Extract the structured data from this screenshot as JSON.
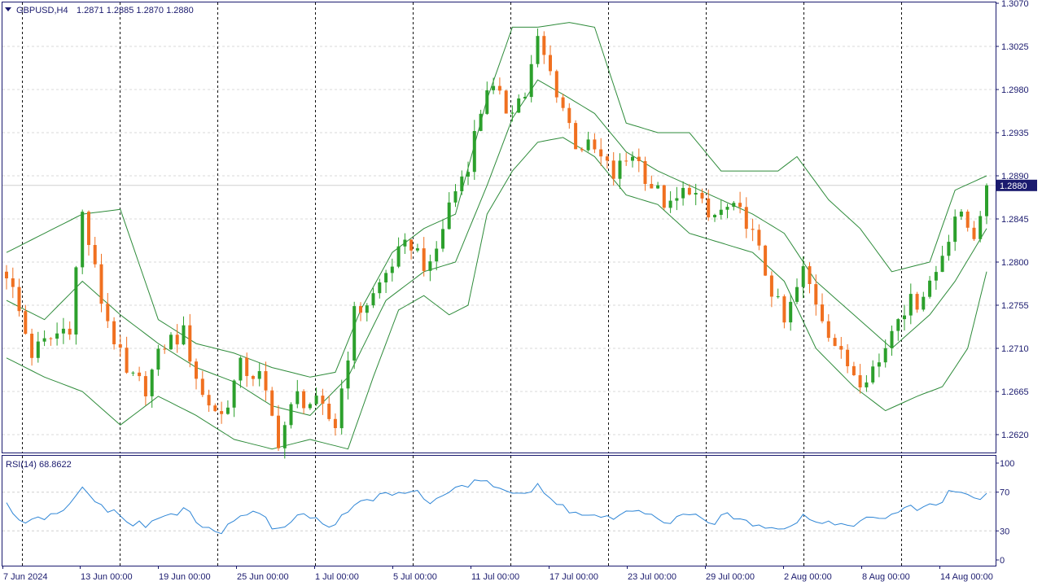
{
  "header": {
    "symbol": "GBPUSD,H4",
    "ohlc": "1.2871 1.2885 1.2870 1.2880"
  },
  "price_tag": "1.2880",
  "rsi": {
    "label": "RSI(14) 68.8622",
    "levels": [
      "100",
      "70",
      "30",
      "0"
    ]
  },
  "colors": {
    "background": "#ffffff",
    "frame": "#1a1a6e",
    "bull": "#2ca02c",
    "bear": "#f07020",
    "bands": "#2e8b3a",
    "rsi_line": "#2f86d6",
    "price_tag_bg": "#1a1a6e"
  },
  "chart_data": [
    {
      "type": "candlestick",
      "title": "GBPUSD,H4",
      "y_ticks": [
        "1.3070",
        "1.3025",
        "1.2980",
        "1.2935",
        "1.2890",
        "1.2845",
        "1.2800",
        "1.2755",
        "1.2710",
        "1.2665",
        "1.2620"
      ],
      "ylim": [
        1.26,
        1.307
      ],
      "x_ticks": [
        "7 Jun 2024",
        "13 Jun 00:00",
        "19 Jun 00:00",
        "25 Jun 00:00",
        "1 Jul 00:00",
        "5 Jul 00:00",
        "11 Jul 00:00",
        "17 Jul 00:00",
        "23 Jul 00:00",
        "29 Jul 00:00",
        "2 Aug 00:00",
        "8 Aug 00:00",
        "14 Aug 00:00"
      ],
      "close_path": [
        [
          0,
          1.279
        ],
        [
          4,
          1.2705
        ],
        [
          7,
          1.272
        ],
        [
          10,
          1.2735
        ],
        [
          12,
          1.285
        ],
        [
          15,
          1.276
        ],
        [
          19,
          1.268
        ],
        [
          22,
          1.267
        ],
        [
          25,
          1.2715
        ],
        [
          28,
          1.2725
        ],
        [
          31,
          1.266
        ],
        [
          34,
          1.264
        ],
        [
          37,
          1.269
        ],
        [
          40,
          1.268
        ],
        [
          43,
          1.2615
        ],
        [
          46,
          1.266
        ],
        [
          49,
          1.265
        ],
        [
          52,
          1.263
        ],
        [
          55,
          1.2745
        ],
        [
          58,
          1.2765
        ],
        [
          61,
          1.28
        ],
        [
          64,
          1.282
        ],
        [
          67,
          1.279
        ],
        [
          70,
          1.286
        ],
        [
          73,
          1.2905
        ],
        [
          76,
          1.2985
        ],
        [
          79,
          1.296
        ],
        [
          82,
          1.2975
        ],
        [
          84,
          1.303
        ],
        [
          87,
          1.298
        ],
        [
          90,
          1.2925
        ],
        [
          93,
          1.2915
        ],
        [
          96,
          1.289
        ],
        [
          99,
          1.2915
        ],
        [
          102,
          1.288
        ],
        [
          105,
          1.2855
        ],
        [
          108,
          1.288
        ],
        [
          111,
          1.2845
        ],
        [
          114,
          1.2855
        ],
        [
          117,
          1.2845
        ],
        [
          120,
          1.279
        ],
        [
          123,
          1.2735
        ],
        [
          126,
          1.279
        ],
        [
          129,
          1.2745
        ],
        [
          132,
          1.27
        ],
        [
          135,
          1.268
        ],
        [
          138,
          1.2695
        ],
        [
          141,
          1.275
        ],
        [
          144,
          1.276
        ],
        [
          147,
          1.279
        ],
        [
          150,
          1.285
        ],
        [
          153,
          1.283
        ],
        [
          155,
          1.288
        ]
      ],
      "bands": {
        "upper": [
          [
            0,
            1.281
          ],
          [
            6,
            1.283
          ],
          [
            12,
            1.285
          ],
          [
            18,
            1.2855
          ],
          [
            24,
            1.274
          ],
          [
            30,
            1.2715
          ],
          [
            36,
            1.2705
          ],
          [
            42,
            1.269
          ],
          [
            48,
            1.268
          ],
          [
            52,
            1.2685
          ],
          [
            56,
            1.275
          ],
          [
            61,
            1.281
          ],
          [
            66,
            1.2835
          ],
          [
            71,
            1.285
          ],
          [
            76,
            1.297
          ],
          [
            80,
            1.3045
          ],
          [
            84,
            1.3045
          ],
          [
            89,
            1.305
          ],
          [
            93,
            1.3045
          ],
          [
            98,
            1.2945
          ],
          [
            103,
            1.2935
          ],
          [
            108,
            1.2935
          ],
          [
            113,
            1.2895
          ],
          [
            118,
            1.2895
          ],
          [
            122,
            1.2895
          ],
          [
            125,
            1.291
          ],
          [
            130,
            1.2865
          ],
          [
            135,
            1.2835
          ],
          [
            140,
            1.279
          ],
          [
            146,
            1.28
          ],
          [
            150,
            1.2875
          ],
          [
            155,
            1.289
          ]
        ],
        "middle": [
          [
            0,
            1.276
          ],
          [
            6,
            1.274
          ],
          [
            12,
            1.278
          ],
          [
            18,
            1.2745
          ],
          [
            24,
            1.2715
          ],
          [
            30,
            1.269
          ],
          [
            36,
            1.2675
          ],
          [
            42,
            1.265
          ],
          [
            48,
            1.264
          ],
          [
            54,
            1.268
          ],
          [
            60,
            1.276
          ],
          [
            66,
            1.279
          ],
          [
            71,
            1.28
          ],
          [
            76,
            1.288
          ],
          [
            80,
            1.295
          ],
          [
            84,
            1.299
          ],
          [
            88,
            1.2975
          ],
          [
            93,
            1.2955
          ],
          [
            98,
            1.2915
          ],
          [
            103,
            1.2895
          ],
          [
            108,
            1.288
          ],
          [
            113,
            1.2865
          ],
          [
            118,
            1.285
          ],
          [
            123,
            1.283
          ],
          [
            128,
            1.278
          ],
          [
            134,
            1.2745
          ],
          [
            140,
            1.271
          ],
          [
            146,
            1.2745
          ],
          [
            150,
            1.278
          ],
          [
            155,
            1.2835
          ]
        ],
        "lower": [
          [
            0,
            1.27
          ],
          [
            6,
            1.268
          ],
          [
            12,
            1.2665
          ],
          [
            18,
            1.263
          ],
          [
            24,
            1.266
          ],
          [
            30,
            1.264
          ],
          [
            36,
            1.2615
          ],
          [
            42,
            1.2605
          ],
          [
            48,
            1.2615
          ],
          [
            54,
            1.2605
          ],
          [
            58,
            1.268
          ],
          [
            62,
            1.275
          ],
          [
            66,
            1.2765
          ],
          [
            70,
            1.2745
          ],
          [
            73,
            1.2755
          ],
          [
            76,
            1.285
          ],
          [
            80,
            1.2895
          ],
          [
            84,
            1.2925
          ],
          [
            88,
            1.293
          ],
          [
            93,
            1.291
          ],
          [
            98,
            1.287
          ],
          [
            103,
            1.286
          ],
          [
            108,
            1.283
          ],
          [
            113,
            1.282
          ],
          [
            118,
            1.281
          ],
          [
            123,
            1.278
          ],
          [
            128,
            1.271
          ],
          [
            134,
            1.267
          ],
          [
            139,
            1.2645
          ],
          [
            144,
            1.266
          ],
          [
            148,
            1.267
          ],
          [
            152,
            1.271
          ],
          [
            155,
            1.279
          ]
        ]
      },
      "last_price": 1.288
    },
    {
      "type": "line",
      "title": "RSI(14) 68.8622",
      "ylim": [
        0,
        100
      ],
      "y_ticks": [
        100,
        70,
        30,
        0
      ],
      "values": [
        [
          0,
          56
        ],
        [
          3,
          36
        ],
        [
          6,
          44
        ],
        [
          9,
          48
        ],
        [
          12,
          74
        ],
        [
          15,
          56
        ],
        [
          19,
          40
        ],
        [
          22,
          35
        ],
        [
          25,
          45
        ],
        [
          28,
          52
        ],
        [
          31,
          34
        ],
        [
          34,
          28
        ],
        [
          37,
          48
        ],
        [
          40,
          46
        ],
        [
          43,
          30
        ],
        [
          46,
          48
        ],
        [
          49,
          42
        ],
        [
          52,
          35
        ],
        [
          55,
          58
        ],
        [
          58,
          62
        ],
        [
          61,
          70
        ],
        [
          64,
          72
        ],
        [
          67,
          60
        ],
        [
          70,
          72
        ],
        [
          73,
          77
        ],
        [
          76,
          82
        ],
        [
          79,
          72
        ],
        [
          82,
          68
        ],
        [
          84,
          75
        ],
        [
          87,
          58
        ],
        [
          90,
          48
        ],
        [
          93,
          46
        ],
        [
          96,
          42
        ],
        [
          99,
          50
        ],
        [
          102,
          44
        ],
        [
          105,
          40
        ],
        [
          108,
          46
        ],
        [
          111,
          38
        ],
        [
          114,
          45
        ],
        [
          117,
          40
        ],
        [
          120,
          36
        ],
        [
          123,
          34
        ],
        [
          126,
          45
        ],
        [
          129,
          40
        ],
        [
          132,
          36
        ],
        [
          135,
          40
        ],
        [
          138,
          42
        ],
        [
          141,
          50
        ],
        [
          144,
          54
        ],
        [
          147,
          56
        ],
        [
          150,
          74
        ],
        [
          153,
          62
        ],
        [
          155,
          69
        ]
      ]
    }
  ]
}
